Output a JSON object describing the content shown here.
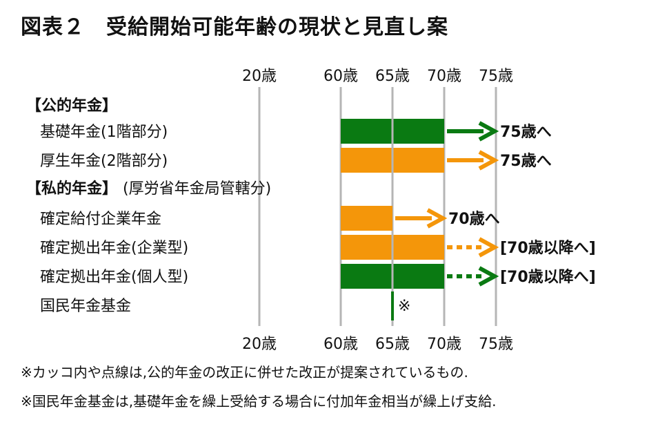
{
  "title": "図表２　受給開始可能年齢の現状と見直し案",
  "colors": {
    "green": "#0a7a12",
    "orange": "#f4960a",
    "grid": "#b5b5b5"
  },
  "chart_data": {
    "type": "bar",
    "axis_ticks": [
      20,
      60,
      65,
      70,
      75
    ],
    "tick_labels": [
      "20歳",
      "60歳",
      "65歳",
      "70歳",
      "75歳"
    ],
    "sections": [
      {
        "label": "【公的年金】",
        "suffix": ""
      },
      {
        "label": "【私的年金】",
        "suffix": "(厚労省年金局管轄分)"
      }
    ],
    "rows": [
      {
        "section": 0,
        "name": "基礎年金(1階部分)",
        "start": 60,
        "end": 70,
        "color": "green",
        "arrow_to": 75,
        "arrow_style": "solid",
        "target_label": "75歳へ"
      },
      {
        "section": 0,
        "name": "厚生年金(2階部分)",
        "start": 60,
        "end": 70,
        "color": "orange",
        "arrow_to": 75,
        "arrow_style": "solid",
        "target_label": "75歳へ"
      },
      {
        "section": 1,
        "name": "確定給付企業年金",
        "start": 60,
        "end": 65,
        "color": "orange",
        "arrow_to": 70,
        "arrow_style": "solid",
        "target_label": "70歳へ"
      },
      {
        "section": 1,
        "name": "確定拠出年金(企業型)",
        "start": 60,
        "end": 70,
        "color": "orange",
        "arrow_to": 75,
        "arrow_style": "dotted",
        "target_label": "[70歳以降へ]"
      },
      {
        "section": 1,
        "name": "確定拠出年金(個人型)",
        "start": 60,
        "end": 70,
        "color": "green",
        "arrow_to": 75,
        "arrow_style": "dotted",
        "target_label": "[70歳以降へ]"
      },
      {
        "section": 1,
        "name": "国民年金基金",
        "start": 65,
        "end": 65,
        "color": "green",
        "arrow_to": null,
        "arrow_style": null,
        "target_label": "",
        "mark": "※"
      }
    ]
  },
  "footnotes": [
    "※カッコ内や点線は,公的年金の改正に併せた改正が提案されているもの.",
    "※国民年金基金は,基礎年金を繰上受給する場合に付加年金相当が繰上げ支給."
  ]
}
